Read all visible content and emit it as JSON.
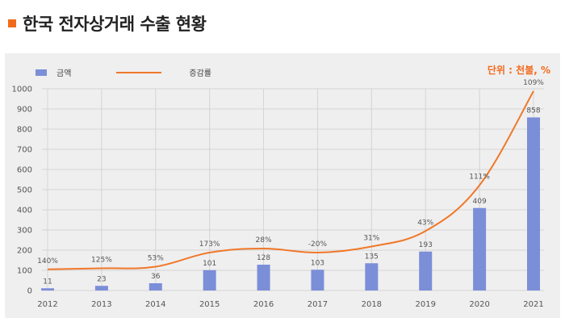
{
  "page": {
    "title": "한국 전자상거래 수출 현황",
    "marker_color": "#f26b1d"
  },
  "colors": {
    "bar": "#7b8ed8",
    "line": "#f0782a",
    "unit": "#f26b1d",
    "grid": "#d4d4d4",
    "axis_text": "#555555"
  },
  "chart_data": {
    "type": "bar",
    "title": "한국 전자상거래 수출 현황",
    "unit_label": "단위 : 천불, %",
    "categories": [
      "2012",
      "2013",
      "2014",
      "2015",
      "2016",
      "2017",
      "2018",
      "2019",
      "2020",
      "2021"
    ],
    "series": [
      {
        "name": "금액",
        "type": "bar",
        "axis": "left",
        "values": [
          11,
          23,
          36,
          101,
          128,
          103,
          135,
          193,
          409,
          858
        ],
        "labels": [
          "11",
          "23",
          "36",
          "101",
          "128",
          "103",
          "135",
          "193",
          "409",
          "858"
        ]
      },
      {
        "name": "증감률",
        "type": "line",
        "axis": "left",
        "values": [
          105,
          110,
          118,
          188,
          208,
          188,
          218,
          295,
          522,
          988
        ],
        "labels": [
          "140%",
          "125%",
          "53%",
          "173%",
          "28%",
          "-20%",
          "31%",
          "43%",
          "111%",
          "109%"
        ]
      }
    ],
    "yticks": [
      0,
      100,
      200,
      300,
      400,
      500,
      600,
      700,
      800,
      900,
      1000
    ],
    "ylim": [
      0,
      1000
    ],
    "grid": true,
    "legend_position": "top-left"
  }
}
